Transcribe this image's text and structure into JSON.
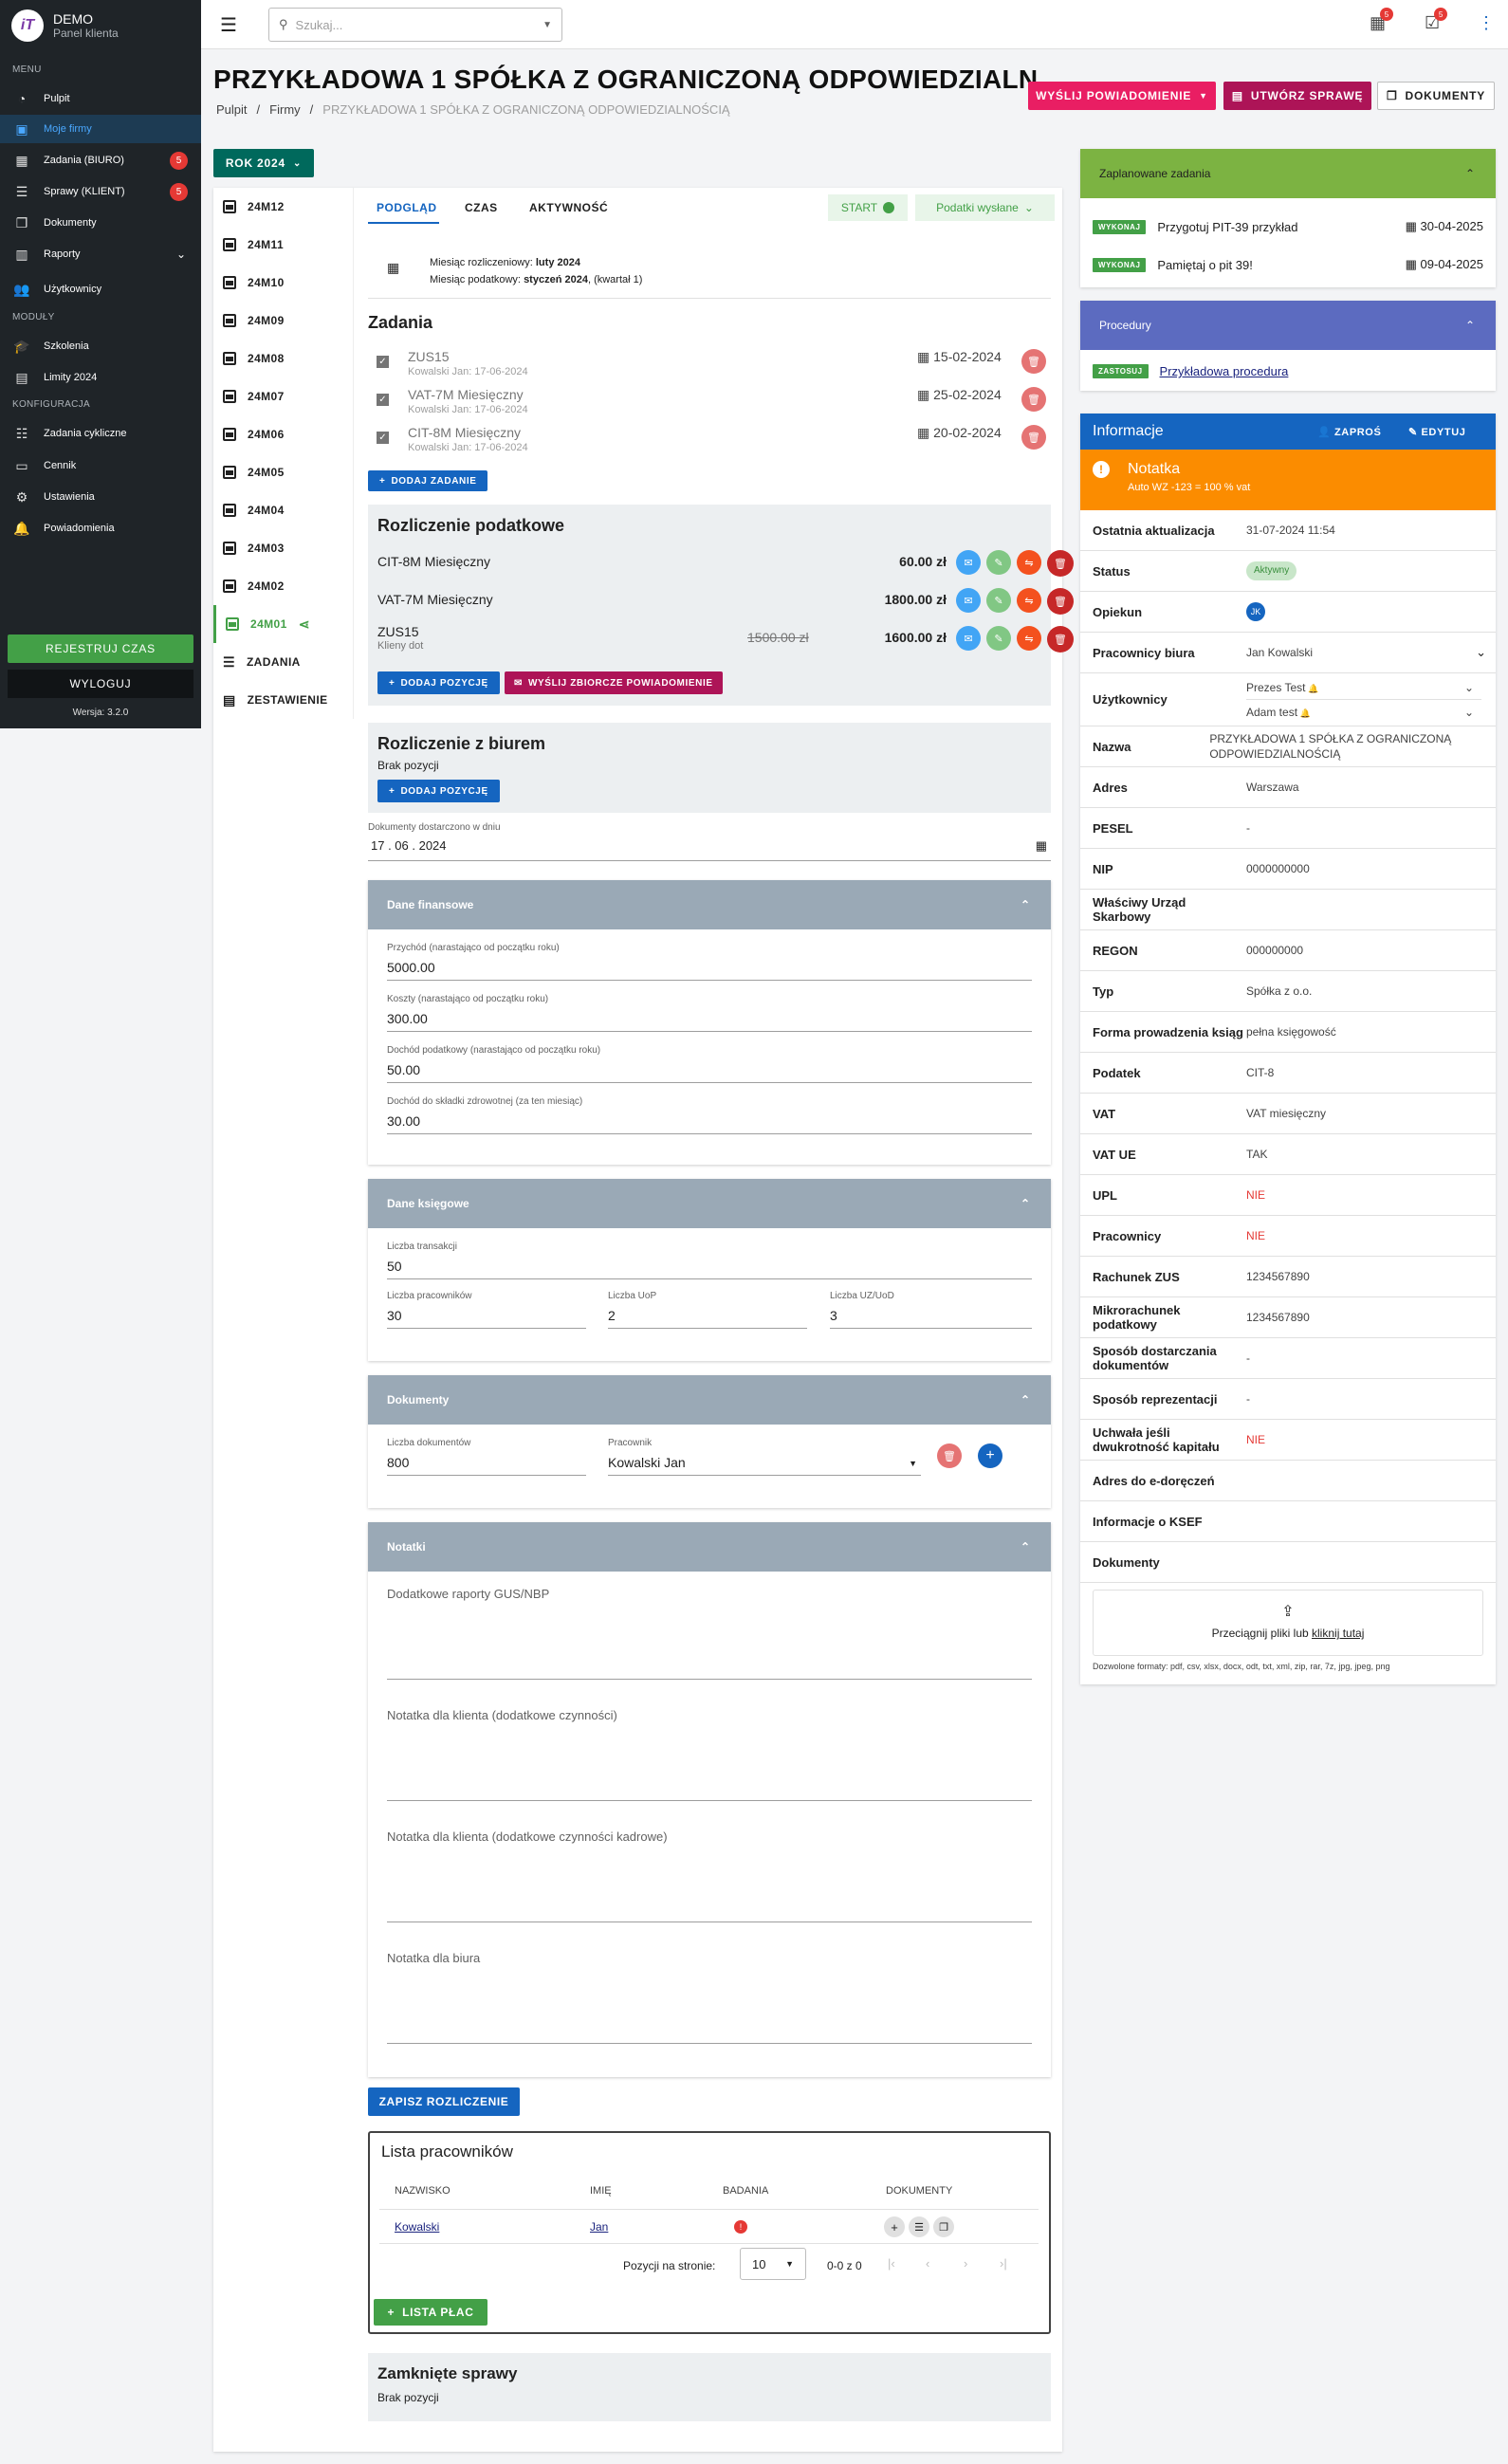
{
  "app": {
    "name": "DEMO",
    "subtitle": "Panel klienta",
    "logo": "iT",
    "version": "Wersja: 3.2.0"
  },
  "sidebar": {
    "sections": [
      "MENU",
      "MODUŁY",
      "KONFIGURACJA"
    ],
    "items": [
      {
        "label": "Pulpit",
        "icon": "dashboard-icon"
      },
      {
        "label": "Moje firmy",
        "icon": "company-icon",
        "active": true
      },
      {
        "label": "Zadania (BIURO)",
        "icon": "calendar-icon",
        "badge": "5"
      },
      {
        "label": "Sprawy (KLIENT)",
        "icon": "list-icon",
        "badge": "5"
      },
      {
        "label": "Dokumenty",
        "icon": "documents-icon"
      },
      {
        "label": "Raporty",
        "icon": "chart-icon"
      },
      {
        "label": "Użytkownicy",
        "icon": "users-icon"
      },
      {
        "label": "Szkolenia",
        "icon": "school-icon"
      },
      {
        "label": "Limity 2024",
        "icon": "limit-icon"
      },
      {
        "label": "Zadania cykliczne",
        "icon": "cycle-icon"
      },
      {
        "label": "Cennik",
        "icon": "money-icon"
      },
      {
        "label": "Ustawienia",
        "icon": "gear-icon"
      },
      {
        "label": "Powiadomienia",
        "icon": "bell-icon"
      }
    ],
    "register_time": "REJESTRUJ CZAS",
    "logout": "WYLOGUJ"
  },
  "topbar": {
    "search_placeholder": "Szukaj...",
    "badge1": "5",
    "badge2": "5"
  },
  "page": {
    "title": "PRZYKŁADOWA 1 SPÓŁKA Z OGRANICZONĄ ODPOWIEDZIALN…",
    "breadcrumb": [
      "Pulpit",
      "Firmy",
      "PRZYKŁADOWA 1 SPÓŁKA Z OGRANICZONĄ ODPOWIEDZIALNOŚCIĄ"
    ],
    "btn_notify": "WYŚLIJ POWIADOMIENIE",
    "btn_case": "UTWÓRZ SPRAWĘ",
    "btn_docs": "DOKUMENTY",
    "year": "ROK 2024"
  },
  "months": [
    "24M12",
    "24M11",
    "24M10",
    "24M09",
    "24M08",
    "24M07",
    "24M06",
    "24M05",
    "24M04",
    "24M03",
    "24M02",
    "24M01",
    "ZADANIA",
    "ZESTAWIENIE"
  ],
  "tabs": {
    "overview": "PODGLĄD",
    "time": "CZAS",
    "activity": "AKTYWNOŚĆ",
    "start": "START",
    "taxes_sent": "Podatki wysłane"
  },
  "period": {
    "settlement_label": "Miesiąc rozliczeniowy:",
    "settlement_value": "luty 2024",
    "tax_label": "Miesiąc podatkowy:",
    "tax_value": "styczeń 2024",
    "tax_suffix": ", (kwartał 1)"
  },
  "tasks": {
    "title": "Zadania",
    "add": "DODAJ ZADANIE",
    "items": [
      {
        "name": "ZUS15",
        "sub": "Kowalski Jan: 17-06-2024",
        "date": "15-02-2024"
      },
      {
        "name": "VAT-7M Miesięczny",
        "sub": "Kowalski Jan: 17-06-2024",
        "date": "25-02-2024"
      },
      {
        "name": "CIT-8M Miesięczny",
        "sub": "Kowalski Jan: 17-06-2024",
        "date": "20-02-2024"
      }
    ]
  },
  "tax": {
    "title": "Rozliczenie podatkowe",
    "add": "DODAJ POZYCJĘ",
    "send_all": "WYŚLIJ ZBIORCZE POWIADOMIENIE",
    "items": [
      {
        "name": "CIT-8M Miesięczny",
        "amount": "60.00 zł"
      },
      {
        "name": "VAT-7M Miesięczny",
        "amount": "1800.00 zł"
      },
      {
        "name": "ZUS15",
        "sub": "Klieny dot",
        "old": "1500.00 zł",
        "amount": "1600.00 zł"
      }
    ]
  },
  "office": {
    "title": "Rozliczenie z biurem",
    "empty": "Brak pozycji",
    "add": "DODAJ POZYCJĘ"
  },
  "docs_date": {
    "label": "Dokumenty dostarczono w dniu",
    "value": "17 . 06 . 2024"
  },
  "financial": {
    "title": "Dane finansowe",
    "fields": [
      {
        "label": "Przychód (narastająco od początku roku)",
        "value": "5000.00"
      },
      {
        "label": "Koszty (narastająco od początku roku)",
        "value": "300.00"
      },
      {
        "label": "Dochód podatkowy (narastająco od początku roku)",
        "value": "50.00"
      },
      {
        "label": "Dochód do składki zdrowotnej (za ten miesiąc)",
        "value": "30.00"
      }
    ]
  },
  "accounting": {
    "title": "Dane księgowe",
    "transactions_label": "Liczba transakcji",
    "transactions": "50",
    "employees_label": "Liczba pracowników",
    "employees": "30",
    "uop_label": "Liczba UoP",
    "uop": "2",
    "uz_label": "Liczba UZ/UoD",
    "uz": "3"
  },
  "documents": {
    "title": "Dokumenty",
    "count_label": "Liczba dokumentów",
    "count": "800",
    "worker_label": "Pracownik",
    "worker": "Kowalski Jan"
  },
  "notes": {
    "title": "Notatki",
    "fields": [
      "Dodatkowe raporty GUS/NBP",
      "Notatka dla klienta (dodatkowe czynności)",
      "Notatka dla klienta (dodatkowe czynności kadrowe)",
      "Notatka dla biura"
    ]
  },
  "save": "ZAPISZ ROZLICZENIE",
  "employees": {
    "title": "Lista pracowników",
    "cols": [
      "NAZWISKO",
      "IMIĘ",
      "BADANIA",
      "DOKUMENTY"
    ],
    "row": {
      "last": "Kowalski",
      "first": "Jan"
    },
    "per_page_label": "Pozycji na stronie:",
    "per_page": "10",
    "range": "0-0 z 0",
    "payroll": "LISTA PŁAC"
  },
  "closed": {
    "title": "Zamknięte sprawy",
    "empty": "Brak pozycji"
  },
  "scheduled": {
    "title": "Zaplanowane zadania",
    "do": "WYKONAJ",
    "items": [
      {
        "name": "Przygotuj PIT-39 przykład",
        "date": "30-04-2025"
      },
      {
        "name": "Pamiętaj o pit 39!",
        "date": "09-04-2025"
      }
    ]
  },
  "procedures": {
    "title": "Procedury",
    "apply": "ZASTOSUJ",
    "item": "Przykładowa procedura"
  },
  "info": {
    "title": "Informacje",
    "ask": "ZAPROŚ",
    "edit": "EDYTUJ",
    "note_title": "Notatka",
    "note_text": "Auto WZ -123 = 100 % vat",
    "rows": [
      {
        "k": "Ostatnia aktualizacja",
        "v": "31-07-2024 11:54"
      },
      {
        "k": "Status",
        "v": "Aktywny"
      },
      {
        "k": "Opiekun",
        "v": "JK"
      },
      {
        "k": "Pracownicy biura",
        "v": "Jan Kowalski"
      },
      {
        "k": "Użytkownicy",
        "v": "Prezes Test",
        "v2": "Adam test"
      },
      {
        "k": "Nazwa",
        "v": "PRZYKŁADOWA 1 SPÓŁKA Z OGRANICZONĄ ODPOWIEDZIALNOŚCIĄ"
      },
      {
        "k": "Adres",
        "v": "Warszawa"
      },
      {
        "k": "PESEL",
        "v": "-"
      },
      {
        "k": "NIP",
        "v": "0000000000"
      },
      {
        "k": "Właściwy Urząd Skarbowy",
        "v": ""
      },
      {
        "k": "REGON",
        "v": "000000000"
      },
      {
        "k": "Typ",
        "v": "Spółka z o.o."
      },
      {
        "k": "Forma prowadzenia ksiąg",
        "v": "pełna księgowość"
      },
      {
        "k": "Podatek",
        "v": "CIT-8"
      },
      {
        "k": "VAT",
        "v": "VAT miesięczny"
      },
      {
        "k": "VAT UE",
        "v": "TAK"
      },
      {
        "k": "UPL",
        "v": "NIE"
      },
      {
        "k": "Pracownicy",
        "v": "NIE"
      },
      {
        "k": "Rachunek ZUS",
        "v": "1234567890"
      },
      {
        "k": "Mikrorachunek podatkowy",
        "v": "1234567890"
      },
      {
        "k": "Sposób dostarczania dokumentów",
        "v": "-"
      },
      {
        "k": "Sposób reprezentacji",
        "v": "-"
      },
      {
        "k": "Uchwała jeśli dwukrotność kapitału",
        "v": "NIE"
      },
      {
        "k": "Adres do e-doręczeń",
        "v": ""
      },
      {
        "k": "Informacje o KSEF",
        "v": ""
      },
      {
        "k": "Dokumenty",
        "v": ""
      }
    ],
    "drop_text": "Przeciągnij pliki lub ",
    "drop_link": "kliknij tutaj",
    "formats": "Dozwolone formaty: pdf, csv, xlsx, docx, odt, txt, xml, zip, rar, 7z, jpg, jpeg, png"
  }
}
